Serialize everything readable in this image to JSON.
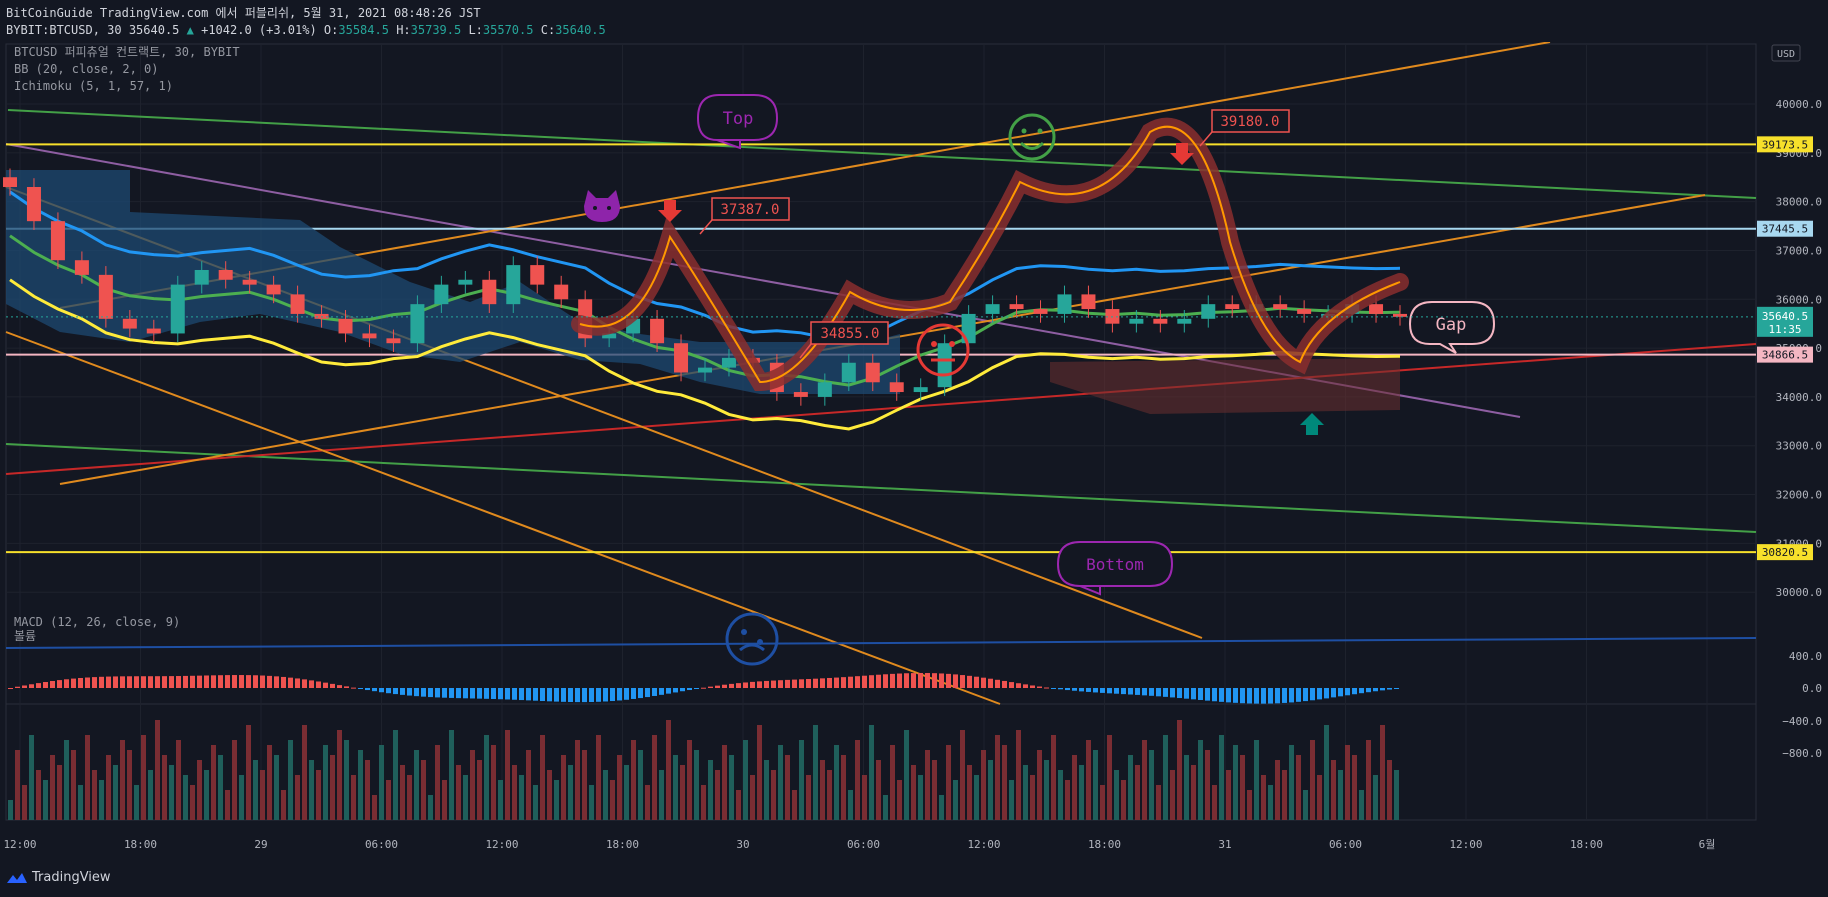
{
  "header": {
    "publish_line": "BitCoinGuide TradingView.com 에서 퍼블리쉬, 5월 31, 2021 08:48:26 JST",
    "symbol_line": "BYBIT:BTCUSD, 30 35640.5",
    "change": "+1042.0 (+3.01%)",
    "ohlc_o_label": "O:",
    "ohlc_o": "35584.5",
    "ohlc_h_label": "H:",
    "ohlc_h": "35739.5",
    "ohlc_l_label": "L:",
    "ohlc_l": "35570.5",
    "ohlc_c_label": "C:",
    "ohlc_c": "35640.5"
  },
  "legend": {
    "symbol": "BTCUSD 퍼피츄얼 컨트랙트, 30, BYBIT",
    "bb": "BB (20, close, 2, 0)",
    "ichimoku": "Ichimoku (5, 1, 57, 1)",
    "macd": "MACD (12, 26, close, 9)",
    "volume": "볼륨"
  },
  "price_axis": {
    "currency": "USD",
    "ticks": [
      "40000.0",
      "39000.0",
      "38000.0",
      "37000.0",
      "36000.0",
      "35000.0",
      "34000.0",
      "33000.0",
      "32000.0",
      "31000.0",
      "30000.0"
    ],
    "top_partial": "4"
  },
  "price_labels": [
    {
      "text": "39173.5",
      "value": 39173.5,
      "color": "#f7e02b",
      "text_color": "#131722"
    },
    {
      "text": "37445.5",
      "value": 37445.5,
      "color": "#a8d8f0",
      "text_color": "#131722"
    },
    {
      "text": "34866.5",
      "value": 34866.5,
      "color": "#f4b6c2",
      "text_color": "#131722"
    },
    {
      "text": "30820.5",
      "value": 30820.5,
      "color": "#f7e02b",
      "text_color": "#131722"
    }
  ],
  "last_price": {
    "text": "35640.5",
    "countdown": "11:35",
    "value": 35640.5,
    "color": "#26a69a"
  },
  "macd_axis": {
    "ticks": [
      "400.0",
      "0.0",
      "−400.0",
      "−800.0"
    ]
  },
  "time_axis": {
    "ticks": [
      "12:00",
      "18:00",
      "29",
      "06:00",
      "12:00",
      "18:00",
      "30",
      "06:00",
      "12:00",
      "18:00",
      "31",
      "06:00",
      "12:00",
      "18:00",
      "6월"
    ]
  },
  "annotations": {
    "top": "Top",
    "bottom": "Bottom",
    "gap": "Gap",
    "high1": "37387.0",
    "high2": "39180.0",
    "low1": "34855.0"
  },
  "colors": {
    "up": "#26a69a",
    "down": "#ef5350",
    "bb_basis": "#4caf50",
    "bb_band": "#2196f3",
    "conversion": "#ffeb3b",
    "highlight": "#ff9800"
  },
  "chart_data": {
    "type": "line",
    "title": "BTCUSD 퍼피츄얼 컨트랙트, 30, BYBIT",
    "ylim": [
      29800,
      41000
    ],
    "series": [
      {
        "name": "close",
        "x": [
          0,
          6,
          12,
          18,
          24,
          30,
          36,
          42,
          48,
          54,
          60,
          66,
          72,
          78,
          84,
          90,
          96,
          102,
          108,
          114,
          120,
          126,
          132,
          138,
          144,
          150,
          156,
          162,
          168,
          174,
          180,
          186,
          192,
          198,
          204,
          210,
          216,
          222,
          228,
          234,
          240,
          246,
          252,
          258,
          264,
          270,
          276,
          282,
          288,
          294,
          300,
          306,
          312,
          318,
          324,
          330,
          336,
          342,
          348
        ],
        "y": [
          38300,
          37600,
          36800,
          36500,
          35600,
          35400,
          35300,
          36300,
          36600,
          36400,
          36300,
          36100,
          35700,
          35600,
          35300,
          35200,
          35100,
          35900,
          36300,
          36400,
          35900,
          36700,
          36300,
          36000,
          35200,
          35300,
          35600,
          35100,
          34500,
          34600,
          34800,
          34700,
          34100,
          34000,
          34300,
          34700,
          34300,
          34100,
          34200,
          35100,
          35700,
          35900,
          35800,
          35700,
          36100,
          35800,
          35500,
          35600,
          35500,
          35600,
          35900,
          35800,
          35900,
          35800,
          35700,
          35700,
          35900,
          35700,
          35640
        ]
      }
    ]
  }
}
